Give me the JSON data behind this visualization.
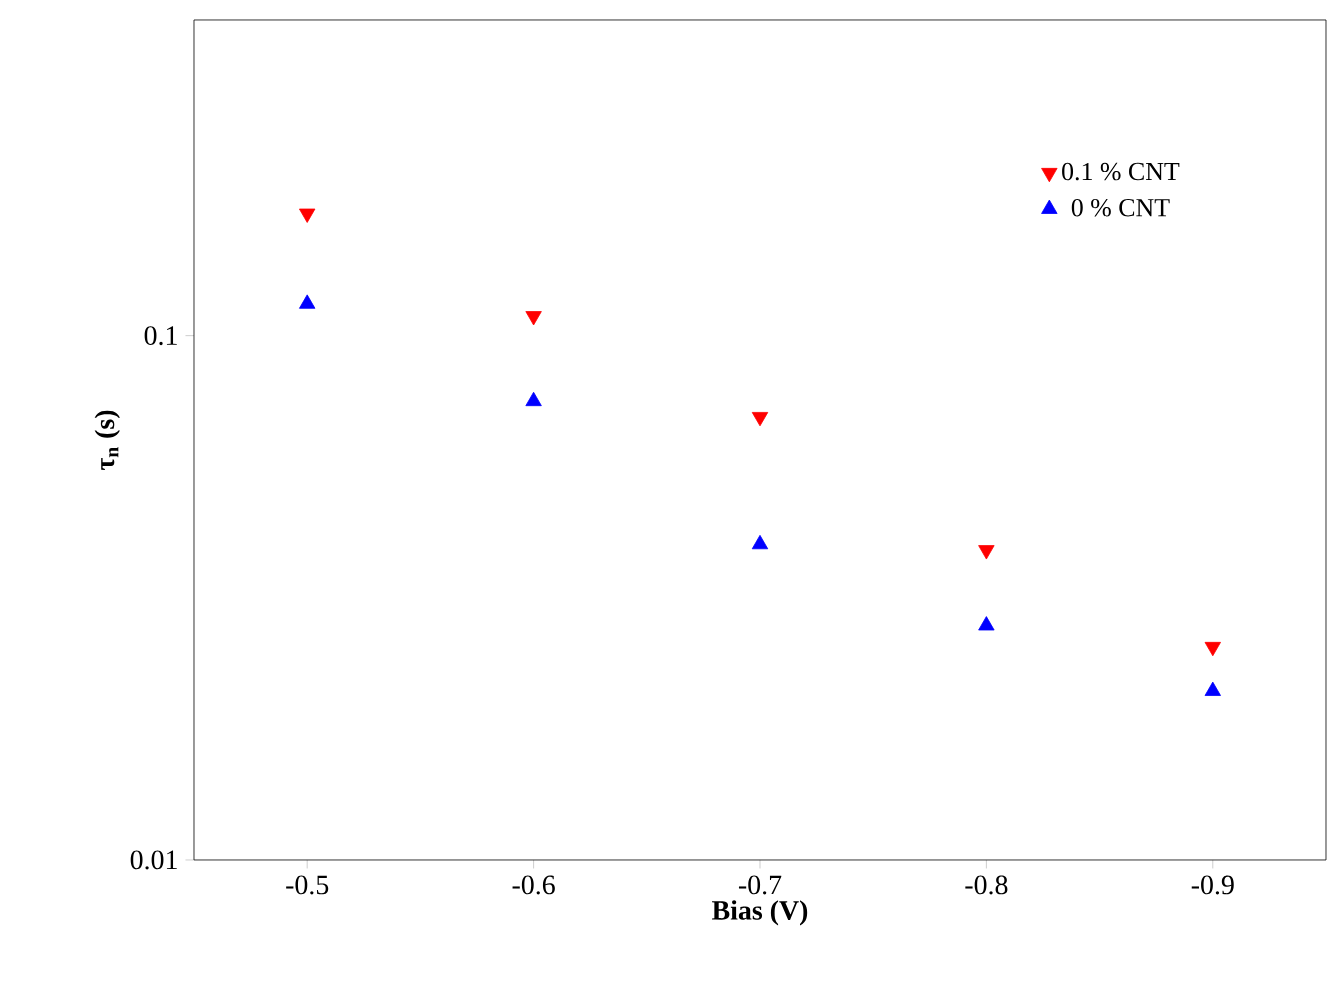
{
  "chart_data": {
    "type": "scatter",
    "xlabel": "Bias (V)",
    "ylabel": "τ$_{n}$ (s)",
    "log": "y",
    "x": [
      -0.5,
      -0.6,
      -0.7,
      -0.8,
      -0.9
    ],
    "series": [
      {
        "name": "0.1 % CNT",
        "color": "#ff0000",
        "marker": "triangle-down",
        "values": [
          0.171,
          0.109,
          0.07,
          0.039,
          0.0255
        ]
      },
      {
        "name": "0 % CNT",
        "color": "#0000ff",
        "marker": "triangle",
        "values": [
          0.115,
          0.075,
          0.04,
          0.028,
          0.021
        ]
      }
    ],
    "xlim": [
      -0.45,
      -0.95
    ],
    "ylim": [
      0.01,
      0.4
    ],
    "xticks": [
      -0.5,
      -0.6,
      -0.7,
      -0.8,
      -0.9
    ],
    "yticks": [
      0.01,
      0.1
    ],
    "legend": "top right",
    "grid": false
  }
}
